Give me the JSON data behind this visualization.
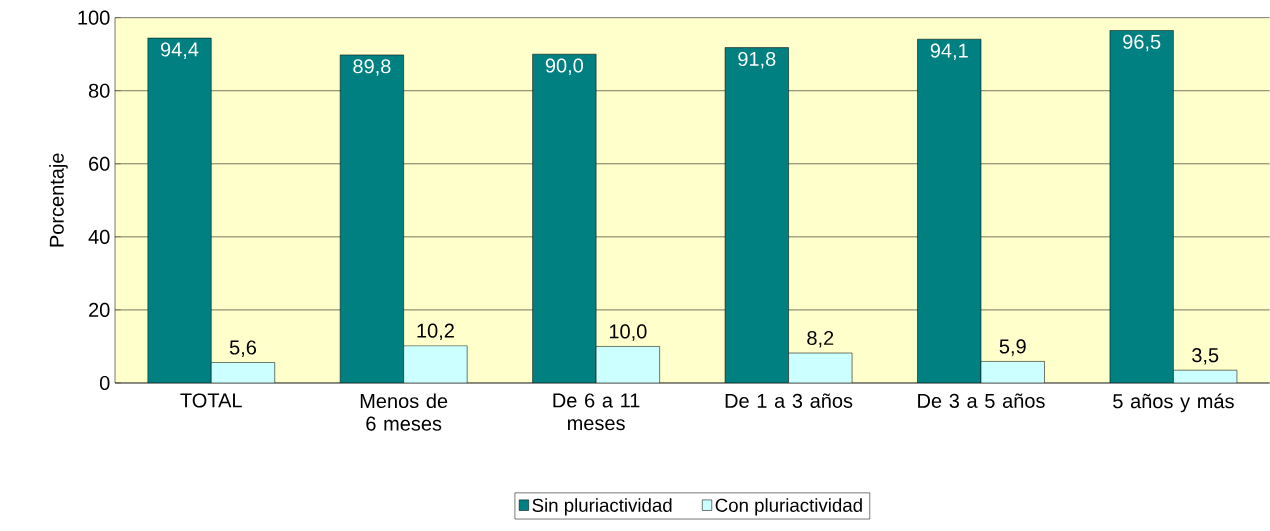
{
  "chart_data": {
    "type": "bar",
    "ylabel": "Porcentaje",
    "categories": [
      "TOTAL",
      "Menos de 6 meses",
      "De 6 a 11 meses",
      "De 1 a 3 años",
      "De 3 a 5 años",
      "5 años y más"
    ],
    "series": [
      {
        "name": "Sin pluriactividad",
        "color": "#008080",
        "values": [
          94.4,
          89.8,
          90.0,
          91.8,
          94.1,
          96.5
        ],
        "value_labels": [
          "94,4",
          "89,8",
          "90,0",
          "91,8",
          "94,1",
          "96,5"
        ]
      },
      {
        "name": "Con pluriactividad",
        "color": "#ccffff",
        "values": [
          5.6,
          10.2,
          10.0,
          8.2,
          5.9,
          3.5
        ],
        "value_labels": [
          "5,6",
          "10,2",
          "10,0",
          "8,2",
          "5,9",
          "3,5"
        ]
      }
    ],
    "ylim": [
      0,
      100
    ],
    "yticks": [
      0,
      20,
      40,
      60,
      80,
      100
    ],
    "grid": "y",
    "legend": "bottom"
  }
}
